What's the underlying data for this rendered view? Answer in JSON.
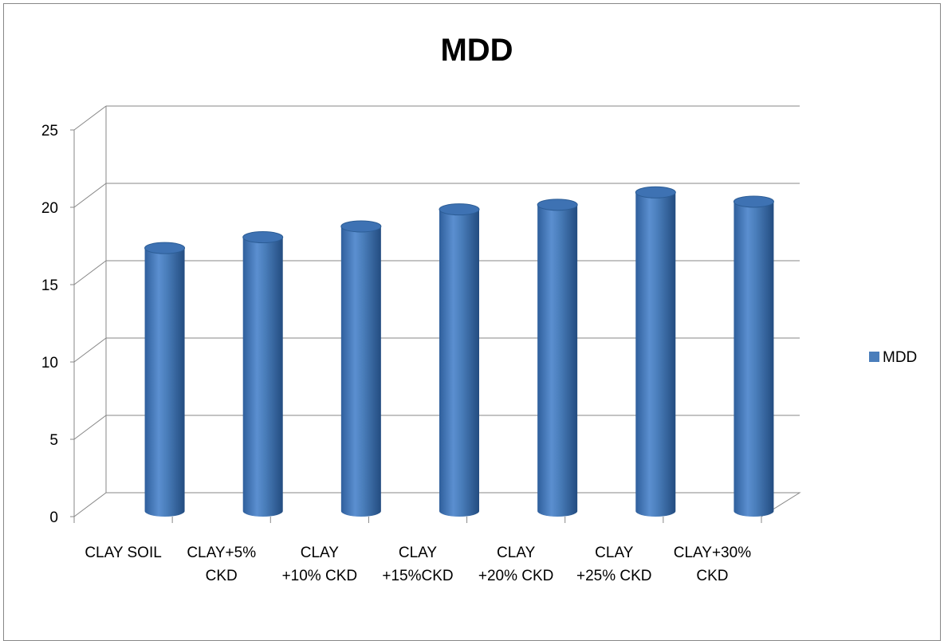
{
  "chart_data": {
    "type": "bar",
    "style": "3d-cylinder",
    "title": "MDD",
    "categories": [
      [
        "CLAY SOIL"
      ],
      [
        "CLAY+5%",
        "CKD"
      ],
      [
        "CLAY",
        "+10% CKD"
      ],
      [
        "CLAY",
        "+15%CKD"
      ],
      [
        "CLAY",
        "+20% CKD"
      ],
      [
        "CLAY",
        "+25% CKD"
      ],
      [
        "CLAY+30%",
        "CKD"
      ]
    ],
    "series": [
      {
        "name": "MDD",
        "values": [
          16.9,
          17.6,
          18.3,
          19.4,
          19.7,
          20.5,
          19.9
        ]
      }
    ],
    "ylim": [
      0,
      25
    ],
    "yticks": [
      0,
      5,
      10,
      15,
      20,
      25
    ],
    "grid": true,
    "legend": "right",
    "colors": {
      "bar": "#4a7ebb",
      "bar_dark": "#2c5d96",
      "bar_light": "#7aa6dc",
      "grid": "#878787"
    }
  }
}
